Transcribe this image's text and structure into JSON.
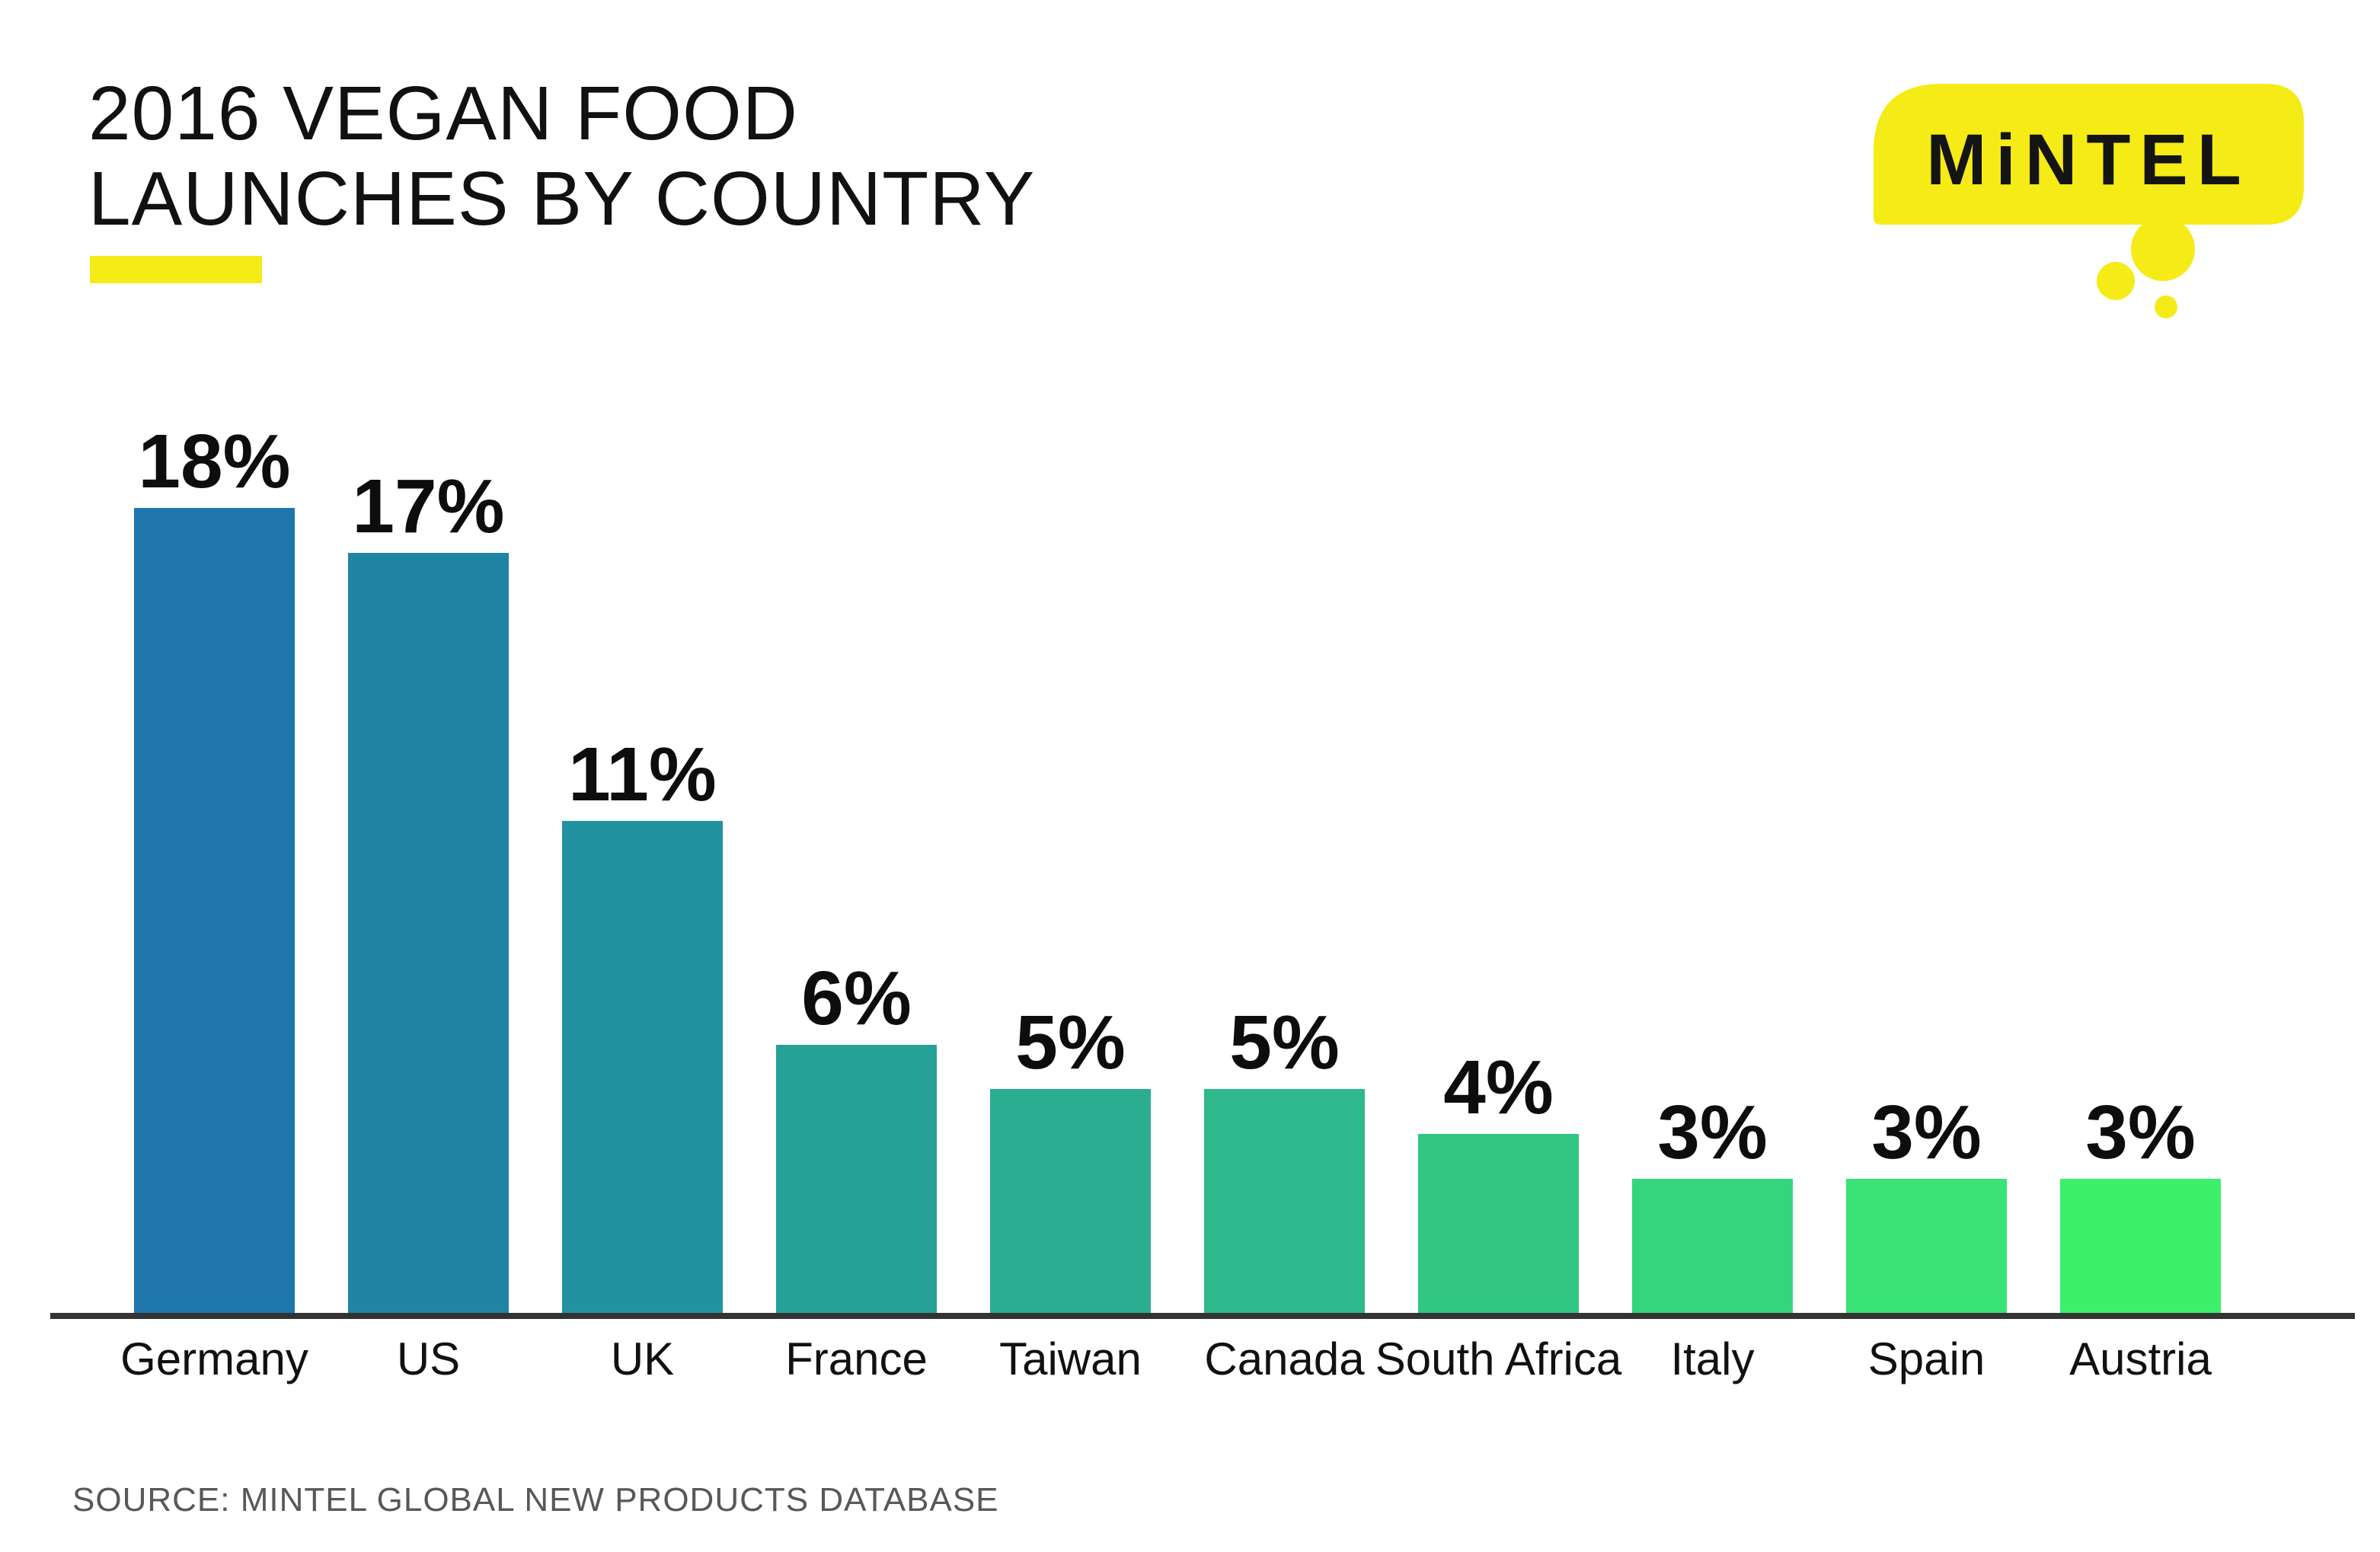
{
  "title": {
    "line1": "2016 VEGAN FOOD",
    "line2": "LAUNCHES BY COUNTRY"
  },
  "logo": {
    "text": "MiNTEL",
    "bubble_color": "#F5EB16",
    "text_color": "#141414"
  },
  "source": "SOURCE: MINTEL GLOBAL NEW PRODUCTS DATABASE",
  "accent": {
    "underline_color": "#F5EB16",
    "axis_color": "#333333",
    "source_color": "#57585a"
  },
  "chart_data": {
    "type": "bar",
    "title": "2016 Vegan Food Launches by Country",
    "categories": [
      "Germany",
      "US",
      "UK",
      "France",
      "Taiwan",
      "Canada",
      "South Africa",
      "Italy",
      "Spain",
      "Austria"
    ],
    "values": [
      18,
      17,
      11,
      6,
      5,
      5,
      4,
      3,
      3,
      3
    ],
    "value_labels": [
      "18%",
      "17%",
      "11%",
      "6%",
      "5%",
      "5%",
      "4%",
      "3%",
      "3%",
      "3%"
    ],
    "bar_colors": [
      "#1E76AD",
      "#2084A4",
      "#2392A0",
      "#26A197",
      "#2BAD92",
      "#2EBA8C",
      "#31C783",
      "#35D57C",
      "#39E274",
      "#3CF06C"
    ],
    "xlabel": "",
    "ylabel": "",
    "ylim": [
      0,
      18
    ],
    "grid": false,
    "legend": null,
    "value_label_position": "above-bars",
    "baseline_axis": true
  }
}
